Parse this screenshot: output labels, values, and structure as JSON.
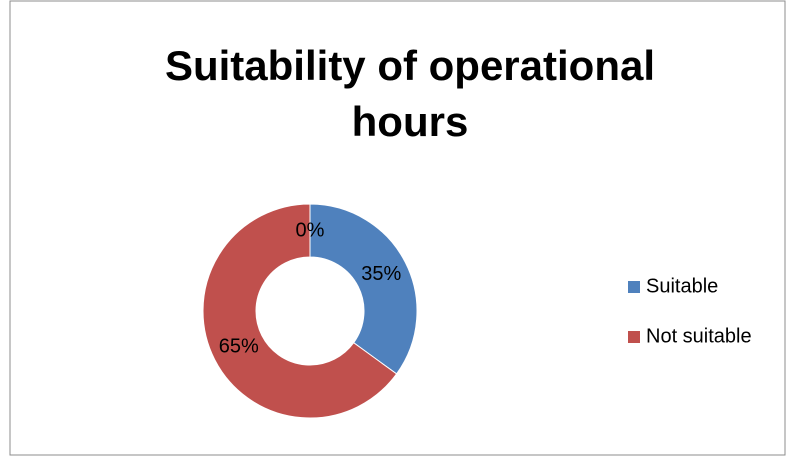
{
  "chart_data": {
    "type": "donut",
    "title": "Suitability of operational hours",
    "categories": [
      "Suitable",
      "Not suitable",
      null
    ],
    "values": [
      35,
      65,
      0
    ],
    "value_labels": [
      "35%",
      "65%",
      "0%"
    ],
    "colors": [
      "#4f81bd",
      "#c0504d",
      "#9bbb59"
    ],
    "legend": "right"
  }
}
